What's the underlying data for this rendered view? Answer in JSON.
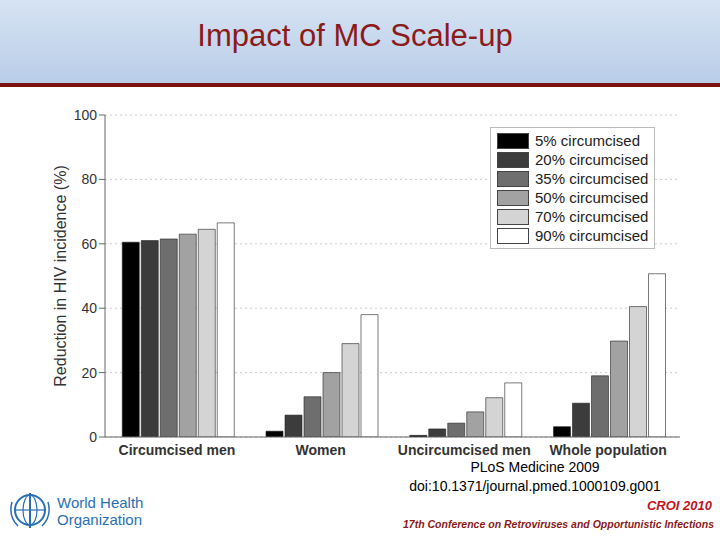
{
  "chart_data": {
    "type": "bar",
    "title": "Impact of MC Scale-up",
    "y_label": "Reduction in HIV incidence (%)",
    "categories": [
      "Circumcised men",
      "Women",
      "Uncircumcised men",
      "Whole population"
    ],
    "series": [
      {
        "name": "5% circumcised",
        "color": "#000000",
        "values": [
          60.5,
          1.8,
          0.5,
          3.2
        ]
      },
      {
        "name": "20% circumcised",
        "color": "#3c3c3c",
        "values": [
          61,
          6.8,
          2.5,
          10.5
        ]
      },
      {
        "name": "35% circumcised",
        "color": "#6e6e6e",
        "values": [
          61.5,
          12.5,
          4.3,
          19
        ]
      },
      {
        "name": "50% circumcised",
        "color": "#a2a2a2",
        "values": [
          63,
          20,
          7.8,
          29.8
        ]
      },
      {
        "name": "70% circumcised",
        "color": "#d4d4d4",
        "values": [
          64.5,
          29,
          12.2,
          40.5
        ]
      },
      {
        "name": "90% circumcised",
        "color": "#ffffff",
        "values": [
          66.5,
          38,
          16.8,
          50.7
        ]
      }
    ],
    "ylim": [
      0,
      100
    ],
    "yticks": [
      0,
      20,
      40,
      60,
      80,
      100
    ],
    "grid": true,
    "legend": "upper right"
  },
  "annotations": {
    "source": "PLoS Medicine 2009",
    "doi": "doi:10.1371/journal.pmed.1000109.g001",
    "conference": "CROI 2010",
    "conference_name": "17th Conference on Retroviruses and Opportunistic Infections",
    "logo": [
      "World Health",
      "Organization"
    ]
  }
}
